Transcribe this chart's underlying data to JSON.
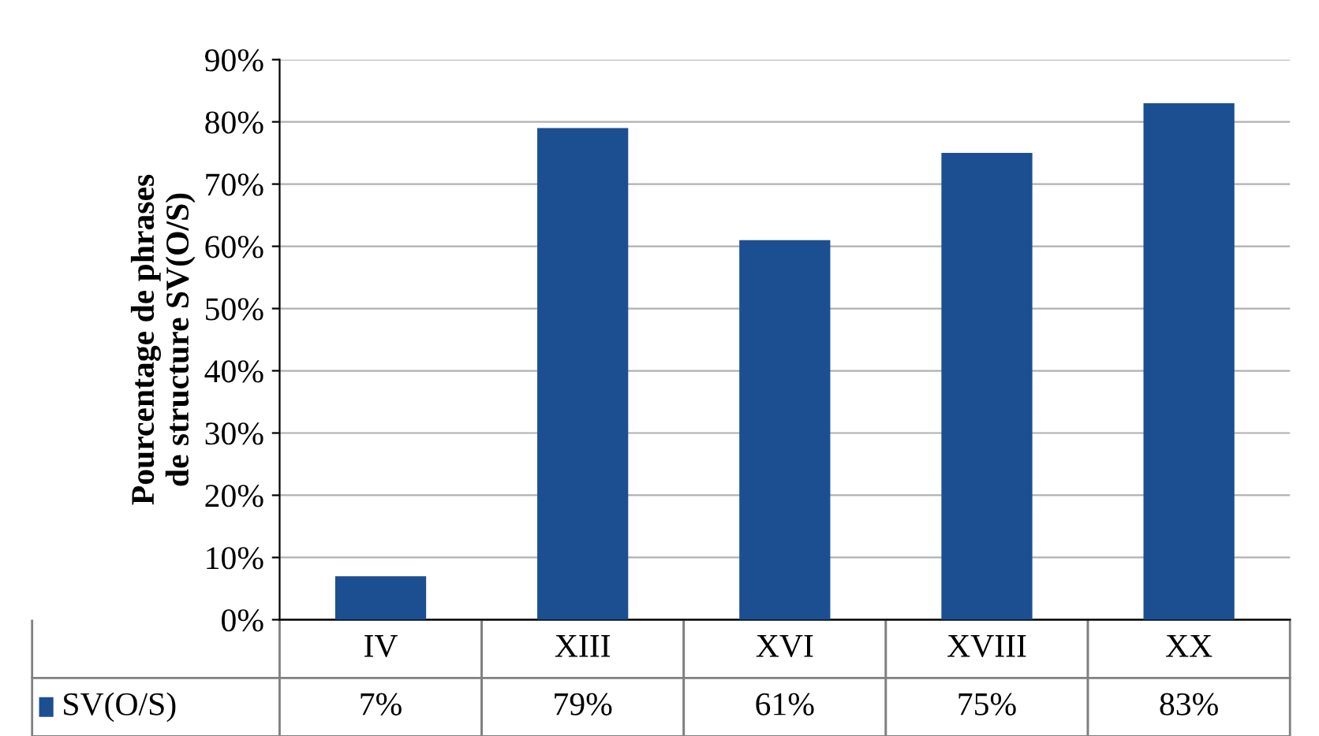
{
  "chart_data": {
    "type": "bar",
    "ylabel": "Pourcentage de phrases\nde structure SV(O/S)",
    "categories": [
      "IV",
      "XIII",
      "XVI",
      "XVIII",
      "XX"
    ],
    "series": [
      {
        "name": "SV(O/S)",
        "color": "#1c4f91",
        "values": [
          7,
          79,
          61,
          75,
          83
        ],
        "value_labels": [
          "7%",
          "79%",
          "61%",
          "75%",
          "83%"
        ]
      }
    ],
    "ylim": [
      0,
      90
    ],
    "yticks": [
      {
        "value": 0,
        "label": "0%"
      },
      {
        "value": 10,
        "label": "10%"
      },
      {
        "value": 20,
        "label": "20%"
      },
      {
        "value": 30,
        "label": "30%"
      },
      {
        "value": 40,
        "label": "40%"
      },
      {
        "value": 50,
        "label": "50%"
      },
      {
        "value": 60,
        "label": "60%"
      },
      {
        "value": 70,
        "label": "70%"
      },
      {
        "value": 80,
        "label": "80%"
      },
      {
        "value": 90,
        "label": "90%"
      }
    ],
    "grid": "y",
    "legend": "bottom left"
  }
}
